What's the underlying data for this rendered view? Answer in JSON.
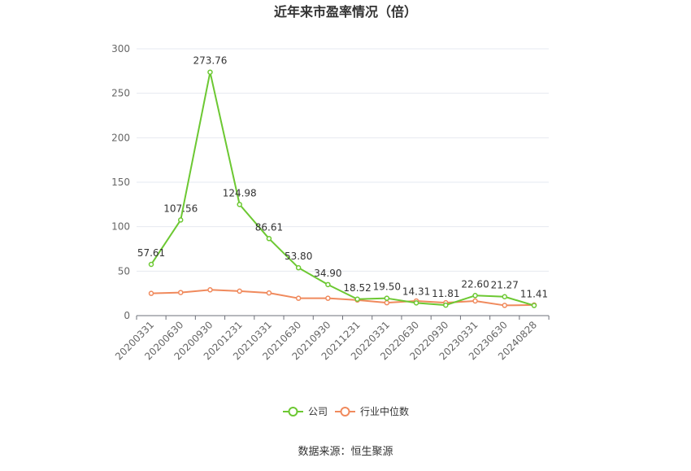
{
  "chart_data": {
    "type": "line",
    "title": "近年来市盈率情况（倍）",
    "x": [
      "20200331",
      "20200630",
      "20200930",
      "20201231",
      "20210331",
      "20210630",
      "20210930",
      "20211231",
      "20220331",
      "20220630",
      "20220930",
      "20230331",
      "20230630",
      "20240828"
    ],
    "series": [
      {
        "name": "公司",
        "color": "#6cc832",
        "values": [
          57.61,
          107.56,
          273.76,
          124.98,
          86.61,
          53.8,
          34.9,
          18.52,
          19.5,
          14.31,
          11.81,
          22.6,
          21.27,
          11.41
        ],
        "labels": [
          "57.61",
          "107.56",
          "273.76",
          "124.98",
          "86.61",
          "53.80",
          "34.90",
          "18.52",
          "19.50",
          "14.31",
          "11.81",
          "22.60",
          "21.27",
          "11.41"
        ]
      },
      {
        "name": "行业中位数",
        "color": "#f08a5d",
        "values": [
          25,
          26,
          29,
          27.5,
          25.5,
          19.5,
          19.5,
          17.5,
          14.5,
          16.5,
          14.5,
          16.5,
          11.5,
          12
        ]
      }
    ],
    "yticks": [
      "0",
      "50",
      "100",
      "150",
      "200",
      "250",
      "300"
    ],
    "ylim": [
      0,
      300
    ],
    "grid": true,
    "legend_position": "bottom-center",
    "source": "数据来源：恒生聚源"
  }
}
